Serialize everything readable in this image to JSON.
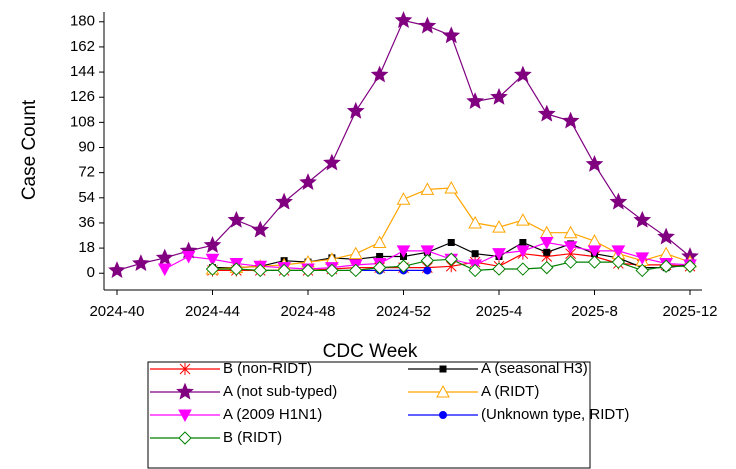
{
  "chart_data": {
    "type": "line",
    "x_label": "CDC Week",
    "y_label": "Case Count",
    "categories": [
      "2024-40",
      null,
      null,
      null,
      "2024-44",
      null,
      null,
      null,
      "2024-48",
      null,
      null,
      null,
      "2024-52",
      null,
      null,
      null,
      "2025-4",
      null,
      null,
      null,
      "2025-8",
      null,
      null,
      null,
      "2025-12"
    ],
    "ylim": [
      -12,
      187
    ],
    "yticks": [
      0,
      18,
      36,
      54,
      72,
      90,
      108,
      126,
      144,
      162,
      180
    ],
    "series": [
      {
        "name": "B (non-RIDT)",
        "color": "#ff0000",
        "marker": "asterisk",
        "values": [
          null,
          null,
          null,
          null,
          2,
          2,
          2,
          2,
          2,
          3,
          4,
          4,
          4,
          4,
          5,
          8,
          5,
          14,
          12,
          14,
          12,
          7,
          6,
          6,
          5
        ]
      },
      {
        "name": "A (seasonal H3)",
        "color": "#000000",
        "marker": "square",
        "values": [
          null,
          null,
          null,
          null,
          4,
          4,
          5,
          9,
          8,
          11,
          10,
          12,
          12,
          15,
          22,
          14,
          12,
          22,
          15,
          21,
          14,
          11,
          4,
          4,
          6
        ]
      },
      {
        "name": "A (not sub-typed)",
        "color": "#800080",
        "marker": "star",
        "values": [
          2,
          7,
          11,
          16,
          20,
          38,
          31,
          51,
          65,
          79,
          116,
          142,
          181,
          177,
          170,
          123,
          126,
          142,
          114,
          109,
          78,
          51,
          38,
          26,
          12
        ]
      },
      {
        "name": "A (RIDT)",
        "color": "#ffa500",
        "marker": "triangle-open",
        "values": [
          null,
          null,
          null,
          null,
          3,
          4,
          5,
          6,
          8,
          10,
          14,
          22,
          53,
          60,
          61,
          36,
          33,
          38,
          29,
          29,
          23,
          14,
          9,
          14,
          8
        ]
      },
      {
        "name": "A (2009 H1N1)",
        "color": "#ff00ff",
        "marker": "triangle-down",
        "values": [
          null,
          null,
          3,
          12,
          10,
          7,
          5,
          4,
          3,
          4,
          6,
          7,
          16,
          16,
          10,
          6,
          14,
          16,
          22,
          19,
          16,
          16,
          11,
          7,
          6
        ]
      },
      {
        "name": "(Unknown type, RIDT)",
        "color": "#0000ff",
        "marker": "circle",
        "values": [
          null,
          null,
          null,
          null,
          null,
          null,
          null,
          null,
          null,
          null,
          2,
          2,
          2,
          2,
          null,
          null,
          null,
          null,
          null,
          null,
          null,
          null,
          null,
          null,
          null
        ]
      },
      {
        "name": "B (RIDT)",
        "color": "#008000",
        "marker": "diamond-open",
        "values": [
          null,
          null,
          null,
          null,
          3,
          3,
          2,
          2,
          2,
          2,
          2,
          4,
          5,
          9,
          10,
          2,
          3,
          3,
          4,
          8,
          8,
          8,
          2,
          5,
          5
        ]
      }
    ]
  }
}
